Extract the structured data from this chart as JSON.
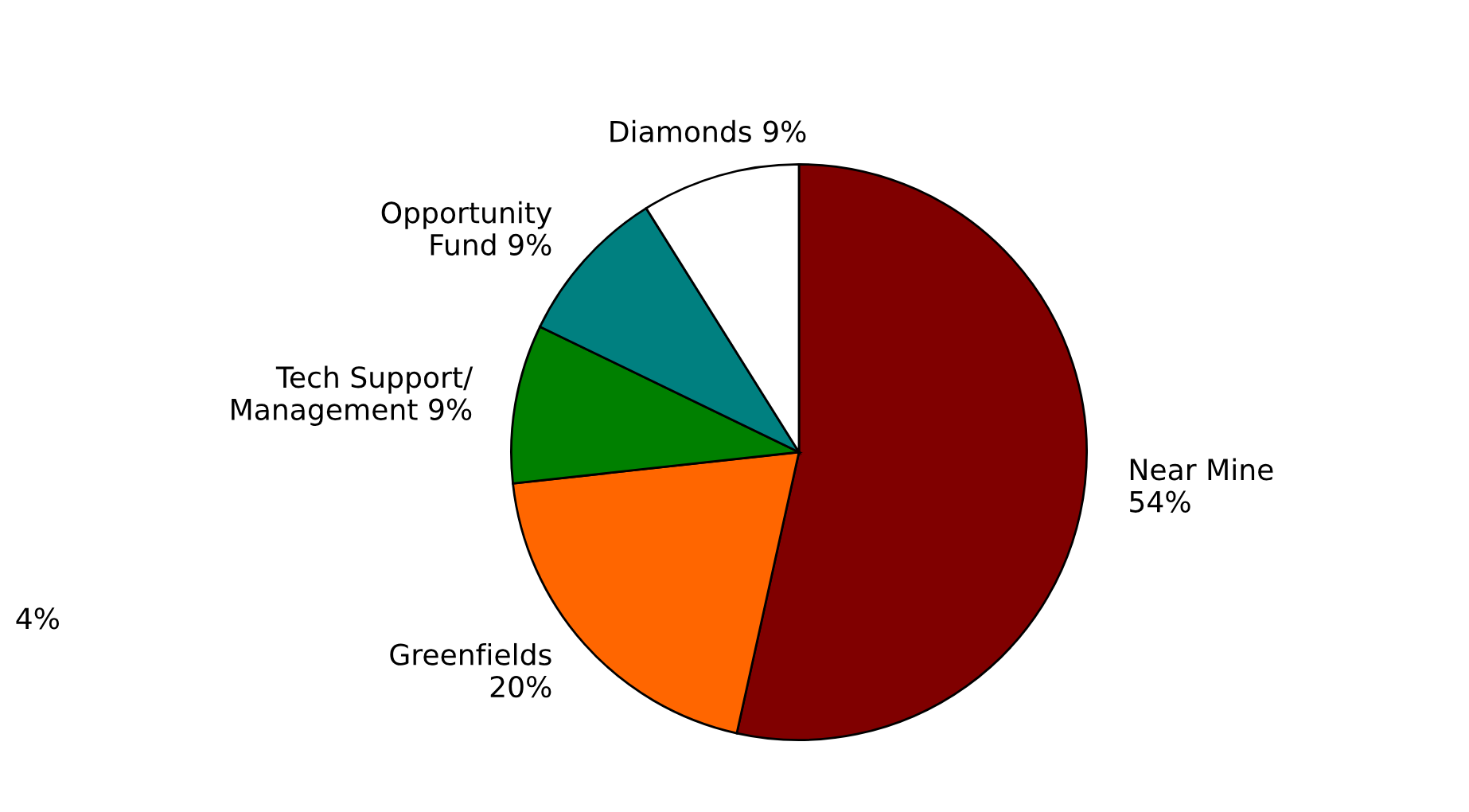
{
  "chart_data": {
    "type": "pie",
    "categories": [
      "Near Mine",
      "Greenfields",
      "Tech Support/\nManagement",
      "Opportunity\nFund",
      "Diamonds"
    ],
    "values": [
      54,
      20,
      9,
      9,
      9
    ],
    "colors": [
      "#800000",
      "#ff6600",
      "#008000",
      "#008080",
      "#ffffff"
    ],
    "value_labels": [
      "54%",
      "20%",
      "9%",
      "9%",
      "9%"
    ],
    "annotations": [
      "4%"
    ],
    "legend": false
  }
}
